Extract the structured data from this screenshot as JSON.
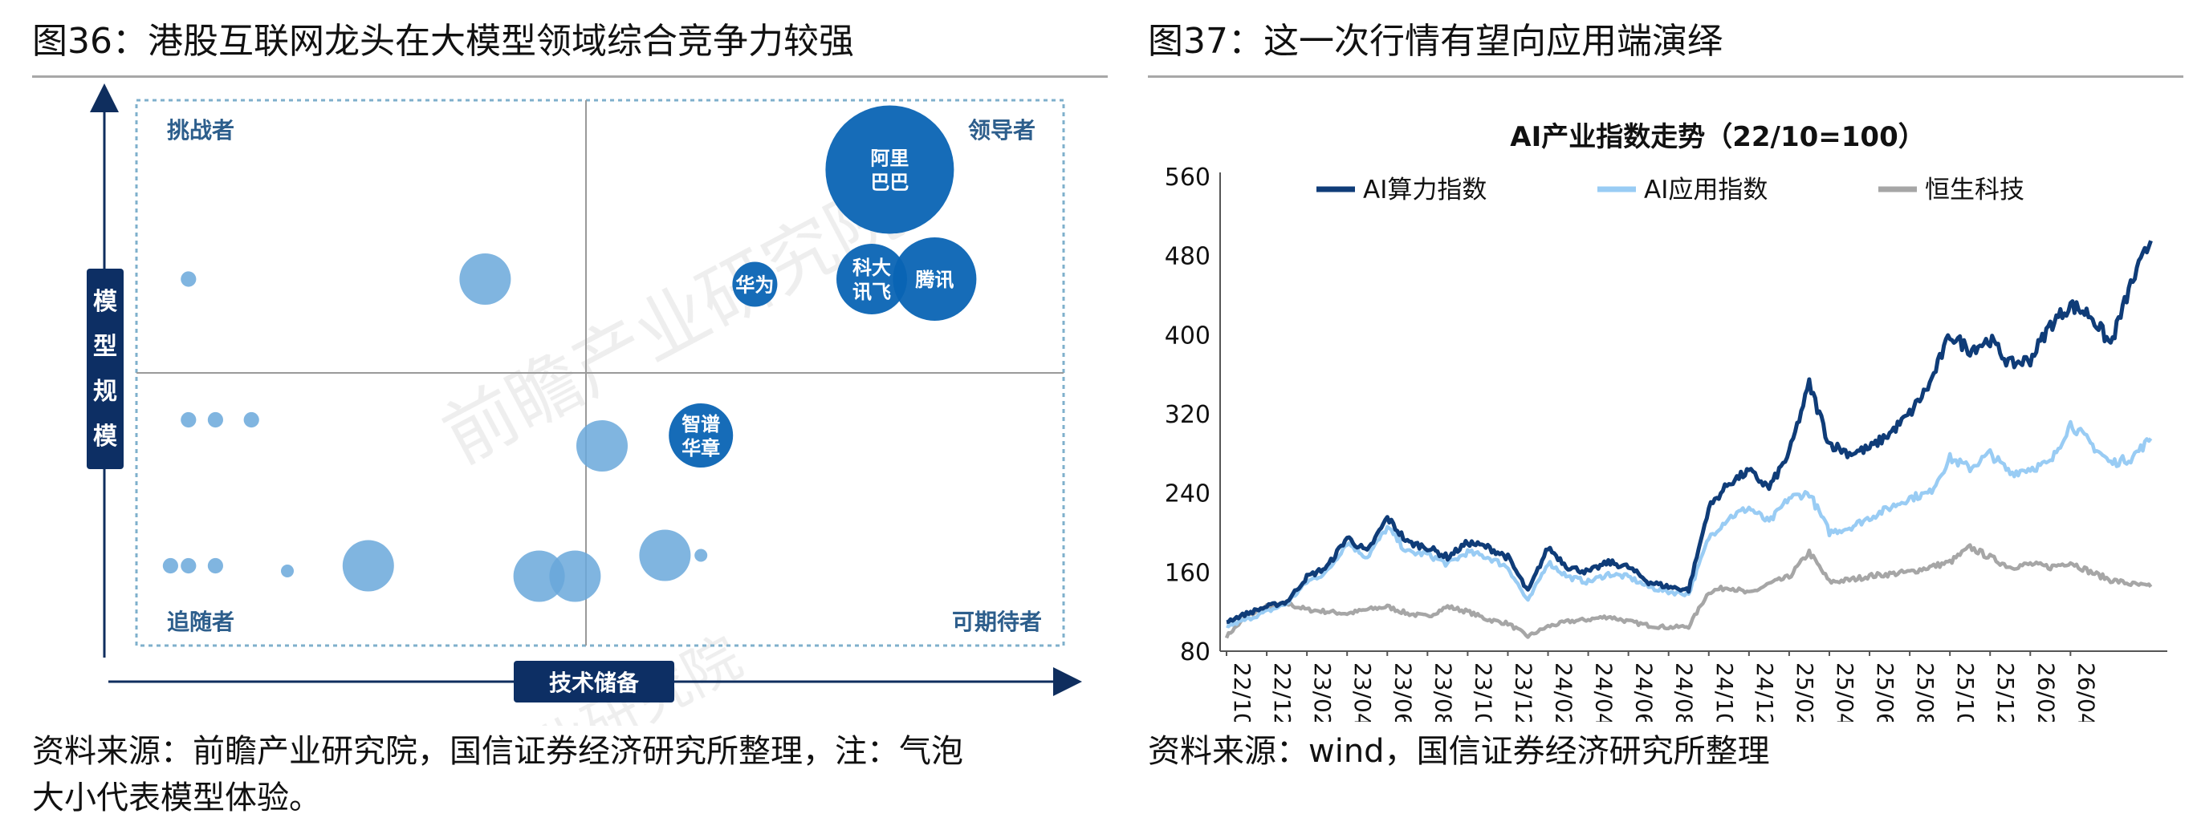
{
  "left": {
    "title": "图36：港股互联网龙头在大模型领域综合竞争力较强",
    "source_line1": "资料来源：前瞻产业研究院，国信证券经济研究所整理，注：气泡",
    "source_line2": "大小代表模型体验。",
    "chart_data": {
      "type": "scatter",
      "title": "",
      "xlabel": "技术储备",
      "ylabel": "模型规模",
      "quadrants": {
        "top_left": "挑战者",
        "top_right": "领导者",
        "bottom_left": "追随者",
        "bottom_right": "可期待者"
      },
      "watermark": "前瞻产业研究院",
      "scale": "0-1 qualitative; size is relative bubble size",
      "bubbles": [
        {
          "label": "阿里巴巴",
          "x": 0.82,
          "y": 0.89,
          "size": 1.0,
          "color": "#0a64b4"
        },
        {
          "label": "科大讯飞",
          "x": 0.8,
          "y": 0.68,
          "size": 0.55,
          "color": "#0a64b4"
        },
        {
          "label": "腾讯",
          "x": 0.87,
          "y": 0.68,
          "size": 0.65,
          "color": "#0a64b4"
        },
        {
          "label": "华为",
          "x": 0.67,
          "y": 0.67,
          "size": 0.35,
          "color": "#0a64b4"
        },
        {
          "label": "智谱华章",
          "x": 0.61,
          "y": 0.38,
          "size": 0.5,
          "color": "#0a64b4"
        },
        {
          "label": "",
          "x": 0.37,
          "y": 0.68,
          "size": 0.4,
          "color": "#6aa8da"
        },
        {
          "label": "",
          "x": 0.04,
          "y": 0.68,
          "size": 0.12,
          "color": "#6aa8da"
        },
        {
          "label": "",
          "x": 0.04,
          "y": 0.41,
          "size": 0.12,
          "color": "#6aa8da"
        },
        {
          "label": "",
          "x": 0.07,
          "y": 0.41,
          "size": 0.12,
          "color": "#6aa8da"
        },
        {
          "label": "",
          "x": 0.11,
          "y": 0.41,
          "size": 0.12,
          "color": "#6aa8da"
        },
        {
          "label": "",
          "x": 0.5,
          "y": 0.36,
          "size": 0.4,
          "color": "#6aa8da"
        },
        {
          "label": "",
          "x": 0.02,
          "y": 0.13,
          "size": 0.12,
          "color": "#6aa8da"
        },
        {
          "label": "",
          "x": 0.04,
          "y": 0.13,
          "size": 0.12,
          "color": "#6aa8da"
        },
        {
          "label": "",
          "x": 0.07,
          "y": 0.13,
          "size": 0.12,
          "color": "#6aa8da"
        },
        {
          "label": "",
          "x": 0.15,
          "y": 0.12,
          "size": 0.1,
          "color": "#6aa8da"
        },
        {
          "label": "",
          "x": 0.24,
          "y": 0.13,
          "size": 0.4,
          "color": "#6aa8da"
        },
        {
          "label": "",
          "x": 0.43,
          "y": 0.11,
          "size": 0.4,
          "color": "#6aa8da"
        },
        {
          "label": "",
          "x": 0.47,
          "y": 0.11,
          "size": 0.4,
          "color": "#6aa8da"
        },
        {
          "label": "",
          "x": 0.57,
          "y": 0.15,
          "size": 0.4,
          "color": "#6aa8da"
        },
        {
          "label": "",
          "x": 0.61,
          "y": 0.15,
          "size": 0.1,
          "color": "#6aa8da"
        }
      ]
    }
  },
  "right": {
    "title": "图37：这一次行情有望向应用端演绎",
    "source_line1": "资料来源：wind，国信证券经济研究所整理",
    "chart_data": {
      "type": "line",
      "title": "AI产业指数走势（22/10=100）",
      "xlabel": "",
      "ylabel": "",
      "ylim": [
        80,
        560
      ],
      "yticks": [
        80,
        160,
        240,
        320,
        400,
        480,
        560
      ],
      "xticks": [
        "22/10",
        "22/12",
        "23/02",
        "23/04",
        "23/06",
        "23/08",
        "23/10",
        "23/12",
        "24/02",
        "24/04",
        "24/06",
        "24/08",
        "24/10",
        "24/12",
        "25/02",
        "25/04",
        "25/06",
        "25/08",
        "25/10",
        "25/12",
        "26/02",
        "26/04"
      ],
      "x_unit": "month index from 22/10 (0) to end of series",
      "legend_position": "top",
      "series": [
        {
          "name": "AI算力指数",
          "color": "#0f3c78",
          "points": [
            [
              0,
              110
            ],
            [
              1,
              118
            ],
            [
              2,
              125
            ],
            [
              3,
              130
            ],
            [
              4,
              155
            ],
            [
              5,
              165
            ],
            [
              6,
              195
            ],
            [
              7,
              180
            ],
            [
              8,
              215
            ],
            [
              9,
              190
            ],
            [
              10,
              185
            ],
            [
              11,
              175
            ],
            [
              12,
              190
            ],
            [
              13,
              185
            ],
            [
              14,
              175
            ],
            [
              15,
              140
            ],
            [
              16,
              185
            ],
            [
              17,
              165
            ],
            [
              18,
              160
            ],
            [
              19,
              170
            ],
            [
              20,
              165
            ],
            [
              21,
              150
            ],
            [
              22,
              145
            ],
            [
              23,
              142
            ],
            [
              24,
              225
            ],
            [
              25,
              250
            ],
            [
              26,
              262
            ],
            [
              27,
              245
            ],
            [
              28,
              280
            ],
            [
              29,
              350
            ],
            [
              30,
              290
            ],
            [
              31,
              280
            ],
            [
              32,
              285
            ],
            [
              33,
              300
            ],
            [
              34,
              320
            ],
            [
              35,
              350
            ],
            [
              36,
              400
            ],
            [
              37,
              385
            ],
            [
              38,
              395
            ],
            [
              39,
              370
            ],
            [
              40,
              375
            ],
            [
              41,
              410
            ],
            [
              42,
              430
            ],
            [
              43,
              420
            ],
            [
              44,
              390
            ],
            [
              45,
              450
            ],
            [
              46,
              495
            ]
          ]
        },
        {
          "name": "AI应用指数",
          "color": "#99ccf4",
          "points": [
            [
              0,
              105
            ],
            [
              1,
              112
            ],
            [
              2,
              120
            ],
            [
              3,
              128
            ],
            [
              4,
              150
            ],
            [
              5,
              160
            ],
            [
              6,
              190
            ],
            [
              7,
              175
            ],
            [
              8,
              205
            ],
            [
              9,
              180
            ],
            [
              10,
              178
            ],
            [
              11,
              168
            ],
            [
              12,
              180
            ],
            [
              13,
              175
            ],
            [
              14,
              165
            ],
            [
              15,
              130
            ],
            [
              16,
              170
            ],
            [
              17,
              155
            ],
            [
              18,
              150
            ],
            [
              19,
              158
            ],
            [
              20,
              155
            ],
            [
              21,
              145
            ],
            [
              22,
              140
            ],
            [
              23,
              138
            ],
            [
              24,
              195
            ],
            [
              25,
              215
            ],
            [
              26,
              225
            ],
            [
              27,
              210
            ],
            [
              28,
              235
            ],
            [
              29,
              240
            ],
            [
              30,
              200
            ],
            [
              31,
              205
            ],
            [
              32,
              215
            ],
            [
              33,
              225
            ],
            [
              34,
              235
            ],
            [
              35,
              240
            ],
            [
              36,
              275
            ],
            [
              37,
              265
            ],
            [
              38,
              280
            ],
            [
              39,
              260
            ],
            [
              40,
              265
            ],
            [
              41,
              270
            ],
            [
              42,
              310
            ],
            [
              43,
              290
            ],
            [
              44,
              270
            ],
            [
              45,
              275
            ],
            [
              46,
              295
            ]
          ]
        },
        {
          "name": "恒生科技",
          "color": "#a6a6a6",
          "points": [
            [
              0,
              95
            ],
            [
              1,
              115
            ],
            [
              2,
              125
            ],
            [
              3,
              128
            ],
            [
              4,
              122
            ],
            [
              5,
              120
            ],
            [
              6,
              118
            ],
            [
              7,
              122
            ],
            [
              8,
              125
            ],
            [
              9,
              118
            ],
            [
              10,
              115
            ],
            [
              11,
              125
            ],
            [
              12,
              120
            ],
            [
              13,
              112
            ],
            [
              14,
              108
            ],
            [
              15,
              95
            ],
            [
              16,
              105
            ],
            [
              17,
              110
            ],
            [
              18,
              112
            ],
            [
              19,
              115
            ],
            [
              20,
              110
            ],
            [
              21,
              106
            ],
            [
              22,
              104
            ],
            [
              23,
              105
            ],
            [
              24,
              140
            ],
            [
              25,
              145
            ],
            [
              26,
              138
            ],
            [
              27,
              148
            ],
            [
              28,
              155
            ],
            [
              29,
              180
            ],
            [
              30,
              150
            ],
            [
              31,
              152
            ],
            [
              32,
              156
            ],
            [
              33,
              158
            ],
            [
              34,
              160
            ],
            [
              35,
              165
            ],
            [
              36,
              170
            ],
            [
              37,
              185
            ],
            [
              38,
              175
            ],
            [
              39,
              165
            ],
            [
              40,
              168
            ],
            [
              41,
              165
            ],
            [
              42,
              170
            ],
            [
              43,
              160
            ],
            [
              44,
              152
            ],
            [
              45,
              148
            ],
            [
              46,
              145
            ]
          ]
        }
      ]
    }
  }
}
